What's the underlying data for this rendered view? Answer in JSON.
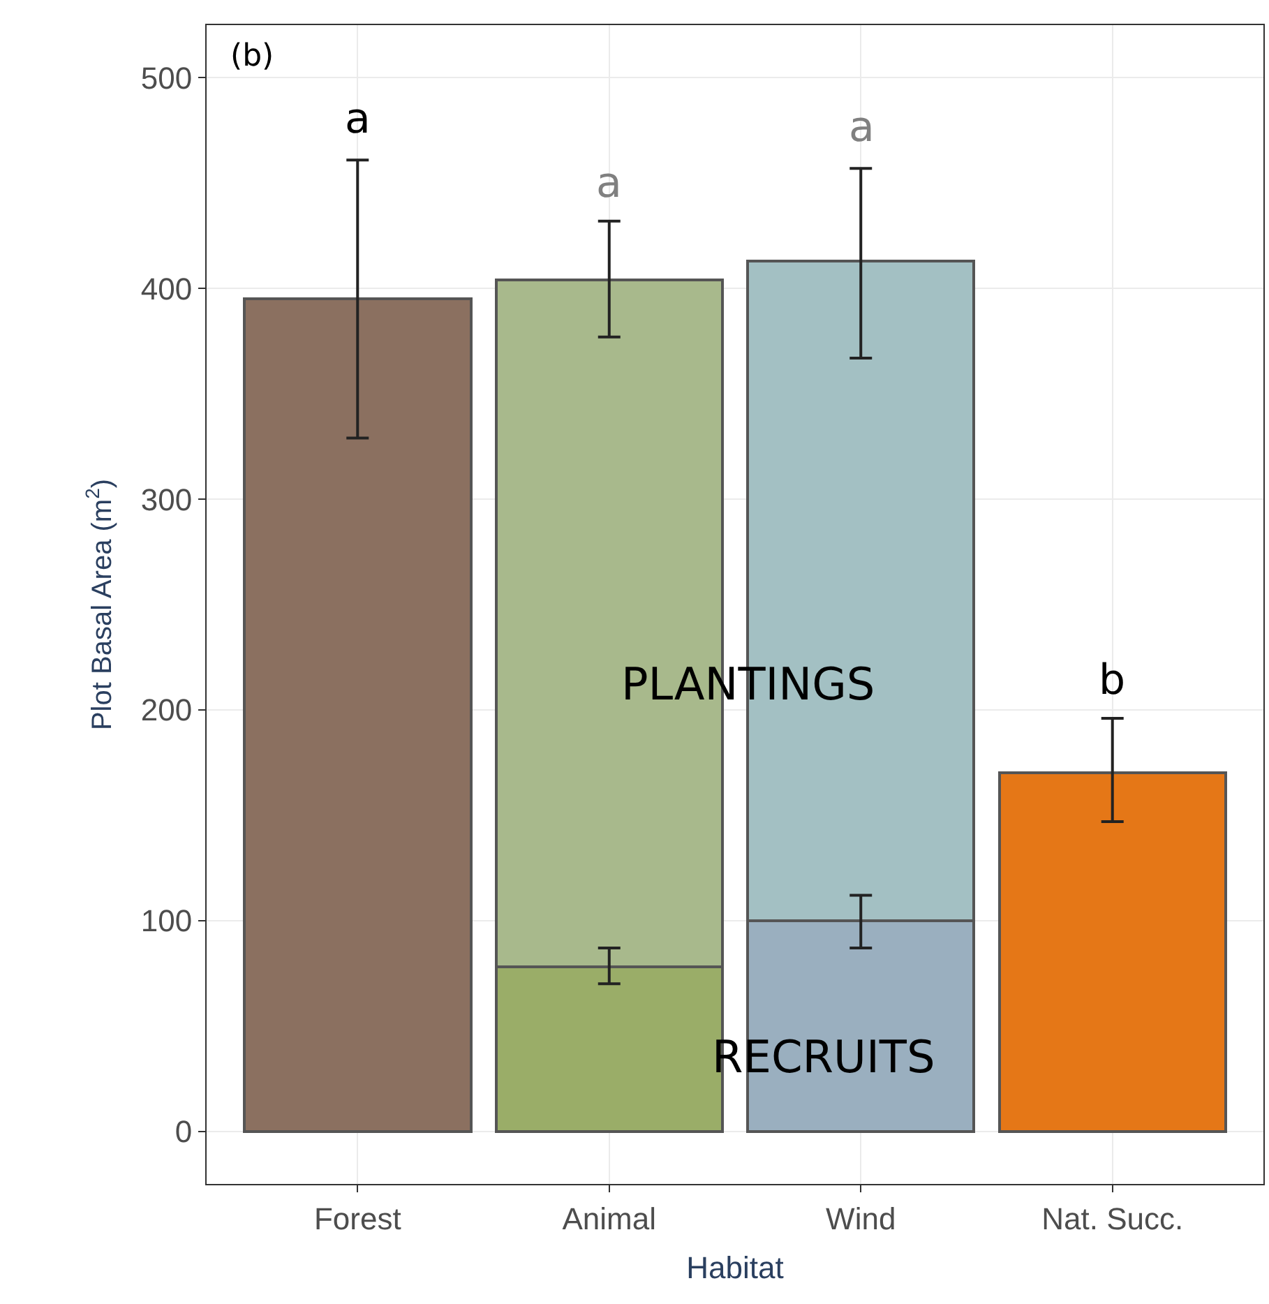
{
  "chart_data": {
    "type": "bar",
    "xlabel": "Habitat",
    "ylabel": "Plot Basal Area (m$^{2}$)",
    "categories": [
      "Forest",
      "Animal",
      "Wind",
      "Nat. Succ."
    ],
    "stacked": true,
    "series": [
      {
        "colors": [
          "#8b7060",
          "#9aad68",
          "#9aafbf",
          "#e57717"
        ],
        "values": [
          null,
          78,
          100,
          null
        ],
        "errors": [
          null,
          [
            70,
            87
          ],
          [
            87,
            112
          ],
          null
        ]
      },
      {
        "colors": [
          "#8b7060",
          "#a8b98c",
          "#a3c0c3",
          "#e57717"
        ],
        "values": [
          395,
          326,
          313,
          170
        ],
        "errors": [
          [
            329,
            461
          ],
          [
            377,
            432
          ],
          [
            367,
            457
          ],
          [
            147,
            196
          ]
        ]
      }
    ],
    "ylim": [
      -25,
      525
    ],
    "yticks": [
      0,
      100,
      200,
      300,
      400,
      500
    ],
    "grid": true,
    "annotations": [
      "(b)",
      "PLANTINGS",
      "RECRUITS",
      "a",
      "a",
      "a",
      "b"
    ]
  }
}
